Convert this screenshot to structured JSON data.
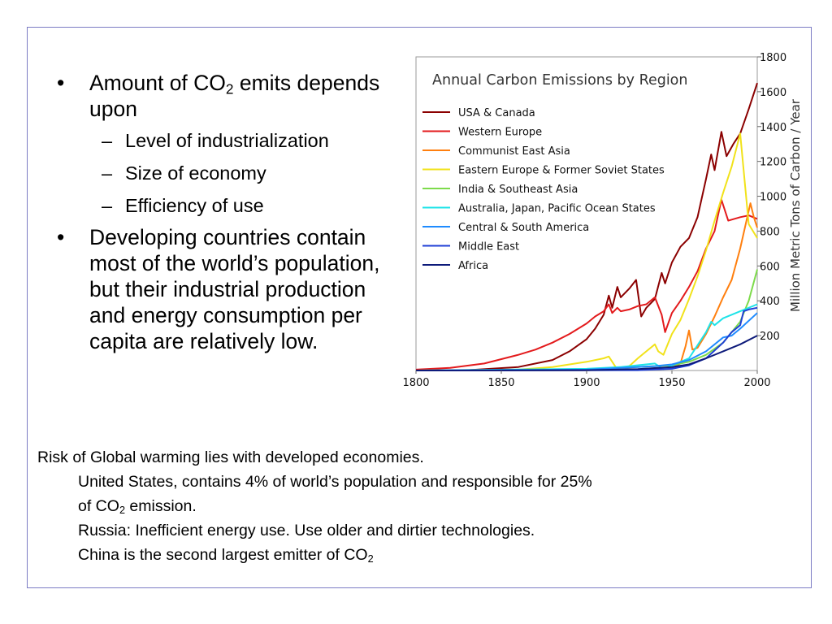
{
  "bullets": {
    "b1_pre": "Amount of CO",
    "b1_sub": "2",
    "b1_post": " emits depends upon",
    "sub_items": [
      "Level of industrialization",
      "Size of economy",
      "Efficiency of use"
    ],
    "b2": "Developing countries contain most of the world’s population, but their industrial production and energy consumption per capita are relatively low.",
    "bullet_symbol": "•",
    "dash_symbol": "–"
  },
  "note": {
    "line1": "Risk of Global warming lies with developed economies.",
    "line2": "United States, contains 4% of world’s population and responsible for 25%",
    "line3_pre": "of CO",
    "line3_sub": "2",
    "line3_post": " emission.",
    "line4": "Russia: Inefficient energy use. Use older and dirtier technologies.",
    "line5_pre": "China is the second largest emitter of CO",
    "line5_sub": "2"
  },
  "chart_data": {
    "type": "line",
    "title": "Annual Carbon Emissions by Region",
    "ylabel": "Million Metric Tons of Carbon / Year",
    "xlabel": "",
    "xlim": [
      1800,
      2000
    ],
    "ylim": [
      0,
      1800
    ],
    "xticks": [
      "1800",
      "1850",
      "1900",
      "1950",
      "2000"
    ],
    "yticks": [
      "200",
      "400",
      "600",
      "800",
      "1000",
      "1200",
      "1400",
      "1600",
      "1800"
    ],
    "legend_position": "top-left",
    "grid": false,
    "series": [
      {
        "name": "USA & Canada",
        "color": "#8b0000",
        "x": [
          1800,
          1830,
          1860,
          1880,
          1890,
          1900,
          1905,
          1910,
          1913,
          1915,
          1918,
          1920,
          1925,
          1929,
          1932,
          1935,
          1940,
          1944,
          1946,
          1950,
          1955,
          1960,
          1965,
          1970,
          1973,
          1975,
          1979,
          1982,
          1986,
          1990,
          1995,
          2000
        ],
        "y": [
          0,
          2,
          20,
          60,
          110,
          180,
          240,
          320,
          430,
          360,
          480,
          420,
          470,
          520,
          310,
          360,
          410,
          560,
          500,
          620,
          710,
          760,
          880,
          1100,
          1240,
          1150,
          1370,
          1230,
          1300,
          1360,
          1500,
          1650
        ]
      },
      {
        "name": "Western Europe",
        "color": "#e31a1c",
        "x": [
          1800,
          1820,
          1840,
          1860,
          1870,
          1880,
          1890,
          1900,
          1905,
          1910,
          1913,
          1915,
          1918,
          1920,
          1925,
          1930,
          1935,
          1940,
          1944,
          1946,
          1950,
          1955,
          1960,
          1965,
          1970,
          1975,
          1979,
          1983,
          1990,
          1995,
          2000
        ],
        "y": [
          5,
          15,
          40,
          90,
          120,
          160,
          210,
          270,
          310,
          340,
          380,
          330,
          360,
          340,
          350,
          370,
          380,
          420,
          320,
          220,
          330,
          400,
          480,
          570,
          700,
          800,
          980,
          860,
          880,
          890,
          870
        ]
      },
      {
        "name": "Communist East Asia",
        "color": "#ff7f0e",
        "x": [
          1800,
          1900,
          1940,
          1950,
          1955,
          1958,
          1960,
          1962,
          1965,
          1970,
          1975,
          1980,
          1985,
          1990,
          1996,
          1998,
          2000
        ],
        "y": [
          0,
          2,
          8,
          15,
          40,
          140,
          230,
          120,
          130,
          210,
          310,
          420,
          520,
          700,
          960,
          880,
          820
        ]
      },
      {
        "name": "Eastern Europe & Former Soviet States",
        "color": "#f1e21a",
        "x": [
          1800,
          1860,
          1880,
          1900,
          1910,
          1913,
          1917,
          1920,
          1925,
          1930,
          1935,
          1940,
          1942,
          1945,
          1950,
          1955,
          1960,
          1965,
          1970,
          1975,
          1980,
          1985,
          1990,
          1995,
          2000
        ],
        "y": [
          0,
          5,
          20,
          50,
          70,
          80,
          20,
          15,
          25,
          70,
          110,
          150,
          110,
          90,
          210,
          290,
          410,
          540,
          690,
          860,
          1020,
          1170,
          1360,
          840,
          760
        ]
      },
      {
        "name": "India & Southeast Asia",
        "color": "#7ddb4b",
        "x": [
          1800,
          1900,
          1920,
          1940,
          1950,
          1960,
          1970,
          1980,
          1990,
          1995,
          2000
        ],
        "y": [
          0,
          5,
          15,
          25,
          30,
          50,
          90,
          160,
          280,
          400,
          580
        ]
      },
      {
        "name": "Australia, Japan, Pacific Ocean States",
        "color": "#1ee3e8",
        "x": [
          1800,
          1900,
          1920,
          1940,
          1945,
          1950,
          1960,
          1970,
          1973,
          1975,
          1980,
          1990,
          2000
        ],
        "y": [
          0,
          10,
          20,
          40,
          8,
          30,
          70,
          220,
          280,
          260,
          300,
          340,
          380
        ]
      },
      {
        "name": "Central & South America",
        "color": "#1f8bff",
        "x": [
          1800,
          1900,
          1920,
          1940,
          1950,
          1960,
          1970,
          1980,
          1985,
          1990,
          2000
        ],
        "y": [
          0,
          5,
          15,
          25,
          35,
          60,
          110,
          190,
          200,
          240,
          330
        ]
      },
      {
        "name": "Middle East",
        "color": "#1f3fd6",
        "x": [
          1800,
          1930,
          1950,
          1960,
          1970,
          1980,
          1985,
          1990,
          1992,
          1995,
          2000
        ],
        "y": [
          0,
          2,
          10,
          30,
          70,
          160,
          220,
          260,
          340,
          350,
          360
        ]
      },
      {
        "name": "Africa",
        "color": "#0d1a7a",
        "x": [
          1800,
          1900,
          1930,
          1950,
          1960,
          1970,
          1980,
          1990,
          2000
        ],
        "y": [
          0,
          2,
          8,
          20,
          35,
          70,
          110,
          150,
          200
        ]
      }
    ]
  }
}
